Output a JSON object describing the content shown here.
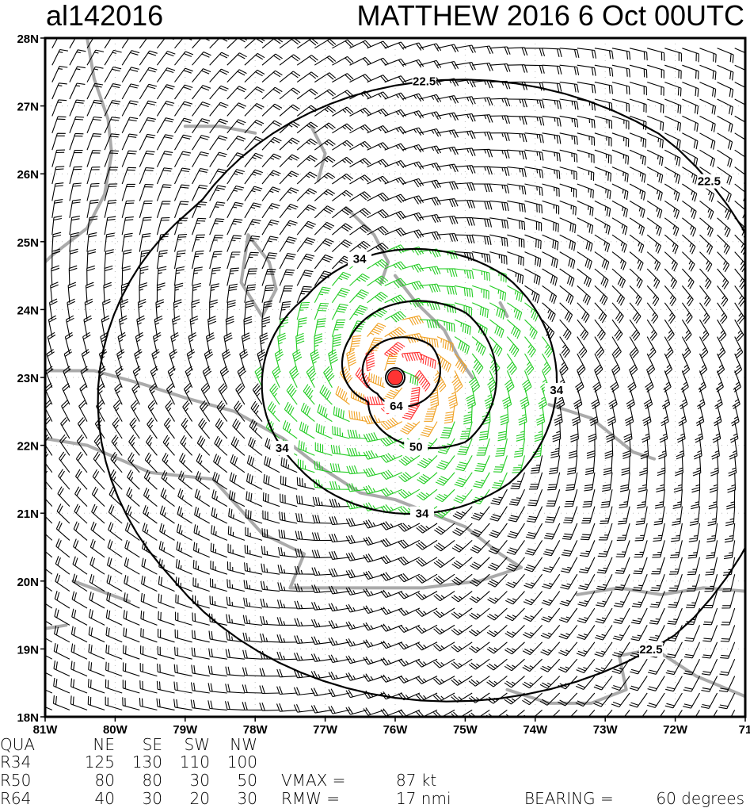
{
  "header": {
    "storm_id": "al142016",
    "title": "MATTHEW 2016  6 Oct 00UTC"
  },
  "chart_data": {
    "type": "wind-barb-map",
    "lon_range": [
      -81,
      -71
    ],
    "lat_range": [
      18,
      28
    ],
    "x_tick_labels": [
      "81W",
      "80W",
      "79W",
      "78W",
      "77W",
      "76W",
      "75W",
      "74W",
      "73W",
      "72W",
      "71"
    ],
    "y_tick_labels": [
      "28N",
      "27N",
      "26N",
      "25N",
      "24N",
      "23N",
      "22N",
      "21N",
      "20N",
      "19N",
      "18N"
    ],
    "storm_center": {
      "lon": -76.0,
      "lat": 23.0
    },
    "contour_levels_kt": [
      22.5,
      34,
      50,
      64
    ],
    "contour_label_texts": [
      "22.5",
      "34",
      "50",
      "64"
    ],
    "barb_colors": {
      "below_34": "#000000",
      "34_to_50": "#22cc22",
      "50_to_64": "#f0a020",
      "above_64": "#ff3030"
    },
    "center_marker_color": "#ff3333",
    "coastline_color": "#aaaaaa",
    "coastlines": [
      [
        [
          -81,
          23.1
        ],
        [
          -80.3,
          23.1
        ],
        [
          -79.6,
          22.9
        ],
        [
          -79,
          22.7
        ],
        [
          -78.3,
          22.5
        ],
        [
          -77.6,
          22.1
        ],
        [
          -77.1,
          21.7
        ],
        [
          -76.5,
          21.3
        ],
        [
          -76,
          21.2
        ],
        [
          -75.5,
          21.0
        ],
        [
          -75,
          20.8
        ],
        [
          -74.5,
          20.4
        ],
        [
          -74.2,
          20.2
        ],
        [
          -74.8,
          20.0
        ],
        [
          -75.6,
          19.9
        ],
        [
          -76.5,
          19.9
        ],
        [
          -77.5,
          19.9
        ],
        [
          -77.3,
          20.4
        ],
        [
          -77.9,
          20.7
        ],
        [
          -78.6,
          21.5
        ],
        [
          -79.5,
          21.6
        ],
        [
          -80.4,
          22.0
        ],
        [
          -81,
          22.1
        ]
      ],
      [
        [
          -73.4,
          19.8
        ],
        [
          -72.8,
          19.9
        ],
        [
          -72.2,
          19.8
        ],
        [
          -71.6,
          19.9
        ],
        [
          -71,
          19.85
        ]
      ],
      [
        [
          -74.4,
          18.4
        ],
        [
          -73.8,
          18.2
        ],
        [
          -73.2,
          18.2
        ],
        [
          -72.7,
          18.4
        ],
        [
          -72.8,
          18.9
        ],
        [
          -72.3,
          19.0
        ],
        [
          -71.7,
          18.6
        ],
        [
          -71,
          18.3
        ]
      ],
      [
        [
          -80.4,
          28
        ],
        [
          -80.3,
          27.4
        ],
        [
          -80.1,
          26.8
        ],
        [
          -80.05,
          26.3
        ],
        [
          -80.15,
          25.7
        ],
        [
          -80.4,
          25.2
        ],
        [
          -80.9,
          24.8
        ],
        [
          -81,
          24.7
        ]
      ],
      [
        [
          -79,
          26.7
        ],
        [
          -78.5,
          26.7
        ],
        [
          -78.0,
          26.6
        ]
      ],
      [
        [
          -77.2,
          26.7
        ],
        [
          -77.0,
          26.3
        ],
        [
          -77.1,
          25.9
        ]
      ],
      [
        [
          -78.1,
          25.1
        ],
        [
          -77.8,
          24.7
        ],
        [
          -77.7,
          24.3
        ],
        [
          -77.9,
          23.9
        ],
        [
          -78.2,
          24.4
        ],
        [
          -78.1,
          25.1
        ]
      ],
      [
        [
          -76.7,
          25.5
        ],
        [
          -76.3,
          25.1
        ],
        [
          -76.1,
          24.7
        ],
        [
          -76.2,
          24.4
        ]
      ],
      [
        [
          -76.0,
          24.5
        ],
        [
          -75.7,
          24.1
        ],
        [
          -75.3,
          23.7
        ],
        [
          -75.1,
          23.3
        ],
        [
          -74.9,
          23.0
        ]
      ],
      [
        [
          -74.5,
          24.1
        ],
        [
          -74.4,
          23.9
        ]
      ],
      [
        [
          -73.8,
          22.6
        ],
        [
          -73.2,
          22.4
        ],
        [
          -72.6,
          21.9
        ],
        [
          -72.3,
          21.8
        ]
      ],
      [
        [
          -80.6,
          20.0
        ],
        [
          -79.8,
          19.7
        ]
      ],
      [
        [
          -81,
          19.3
        ],
        [
          -80.7,
          19.35
        ]
      ]
    ],
    "table": {
      "header": [
        "QUA",
        "NE",
        "SE",
        "SW",
        "NW"
      ],
      "rows": [
        [
          "R34",
          "125",
          "130",
          "110",
          "100"
        ],
        [
          "R50",
          "80",
          "80",
          "30",
          "50"
        ],
        [
          "R64",
          "40",
          "30",
          "20",
          "30"
        ]
      ]
    },
    "vmax_label": "VMAX =",
    "vmax_value": "87 kt",
    "rmw_label": "RMW   =",
    "rmw_value": "17 nmi",
    "bearing_label": "BEARING =",
    "bearing_value": "60 degrees",
    "vmax_kt": 87,
    "rmw_nmi": 17,
    "bearing_deg": 60,
    "radii_nmi": {
      "R34": {
        "NE": 125,
        "SE": 130,
        "SW": 110,
        "NW": 100
      },
      "R50": {
        "NE": 80,
        "SE": 80,
        "SW": 30,
        "NW": 50
      },
      "R64": {
        "NE": 40,
        "SE": 30,
        "SW": 20,
        "NW": 30
      }
    }
  }
}
